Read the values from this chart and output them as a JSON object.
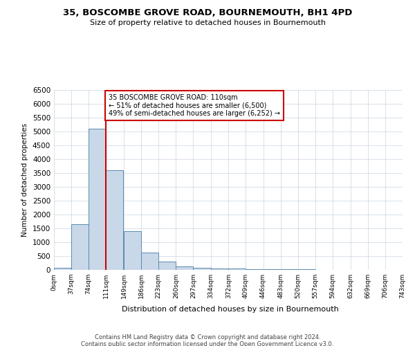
{
  "title": "35, BOSCOMBE GROVE ROAD, BOURNEMOUTH, BH1 4PD",
  "subtitle": "Size of property relative to detached houses in Bournemouth",
  "xlabel": "Distribution of detached houses by size in Bournemouth",
  "ylabel": "Number of detached properties",
  "bin_edges": [
    0,
    37,
    74,
    111,
    149,
    186,
    223,
    260,
    297,
    334,
    372,
    409,
    446,
    483,
    520,
    557,
    594,
    632,
    669,
    706,
    743
  ],
  "bin_labels": [
    "0sqm",
    "37sqm",
    "74sqm",
    "111sqm",
    "149sqm",
    "186sqm",
    "223sqm",
    "260sqm",
    "297sqm",
    "334sqm",
    "372sqm",
    "409sqm",
    "446sqm",
    "483sqm",
    "520sqm",
    "557sqm",
    "594sqm",
    "632sqm",
    "669sqm",
    "706sqm",
    "743sqm"
  ],
  "counts": [
    70,
    1650,
    5100,
    3600,
    1400,
    620,
    310,
    130,
    85,
    55,
    40,
    35,
    30,
    20,
    15,
    12,
    10,
    8,
    6,
    5
  ],
  "bar_color": "#c8d8e8",
  "bar_edge_color": "#5a8ab0",
  "property_value": 110,
  "vline_color": "#cc0000",
  "annotation_line1": "35 BOSCOMBE GROVE ROAD: 110sqm",
  "annotation_line2": "← 51% of detached houses are smaller (6,500)",
  "annotation_line3": "49% of semi-detached houses are larger (6,252) →",
  "annotation_box_color": "white",
  "annotation_box_edge_color": "#cc0000",
  "ylim": [
    0,
    6500
  ],
  "yticks": [
    0,
    500,
    1000,
    1500,
    2000,
    2500,
    3000,
    3500,
    4000,
    4500,
    5000,
    5500,
    6000,
    6500
  ],
  "footer_line1": "Contains HM Land Registry data © Crown copyright and database right 2024.",
  "footer_line2": "Contains public sector information licensed under the Open Government Licence v3.0.",
  "bg_color": "#ffffff",
  "grid_color": "#c8d4e0"
}
